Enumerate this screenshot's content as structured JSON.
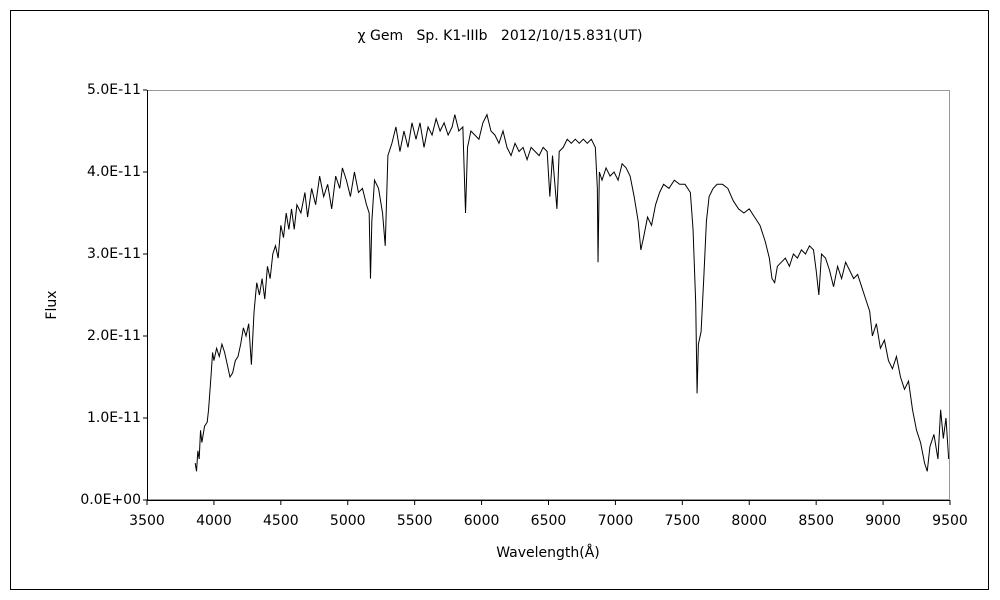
{
  "chart_data": {
    "type": "line",
    "title": "χ Gem   Sp. K1-IIIb   2012/10/15.831(UT)",
    "x_label": "Wavelength(Å)",
    "y_label": "Flux",
    "color": "#000000",
    "xlim": [
      3500,
      9500
    ],
    "xticks": [
      3500,
      4000,
      4500,
      5000,
      5500,
      6000,
      6500,
      7000,
      7500,
      8000,
      8500,
      9000,
      9500
    ],
    "ylim": [
      0,
      5e-11
    ],
    "yticks": [
      {
        "value": 0,
        "label": "0.0E+00"
      },
      {
        "value": 1e-11,
        "label": "1.0E-11"
      },
      {
        "value": 2e-11,
        "label": "2.0E-11"
      },
      {
        "value": 3e-11,
        "label": "3.0E-11"
      },
      {
        "value": 4e-11,
        "label": "4.0E-11"
      },
      {
        "value": 5e-11,
        "label": "5.0E-11"
      }
    ],
    "x": [
      3860,
      3870,
      3880,
      3890,
      3900,
      3910,
      3930,
      3950,
      3960,
      3980,
      3990,
      4000,
      4020,
      4040,
      4060,
      4080,
      4100,
      4120,
      4140,
      4160,
      4180,
      4200,
      4220,
      4240,
      4260,
      4280,
      4300,
      4320,
      4340,
      4360,
      4380,
      4400,
      4420,
      4440,
      4460,
      4480,
      4500,
      4520,
      4540,
      4560,
      4580,
      4600,
      4620,
      4650,
      4680,
      4700,
      4730,
      4760,
      4790,
      4820,
      4850,
      4880,
      4910,
      4940,
      4960,
      4990,
      5020,
      5050,
      5080,
      5110,
      5140,
      5160,
      5170,
      5180,
      5200,
      5230,
      5260,
      5280,
      5300,
      5330,
      5360,
      5390,
      5420,
      5450,
      5480,
      5510,
      5540,
      5570,
      5600,
      5630,
      5660,
      5690,
      5720,
      5750,
      5780,
      5800,
      5830,
      5860,
      5880,
      5895,
      5920,
      5950,
      5980,
      6010,
      6040,
      6070,
      6100,
      6130,
      6160,
      6190,
      6220,
      6250,
      6280,
      6310,
      6340,
      6370,
      6400,
      6430,
      6460,
      6490,
      6510,
      6530,
      6563,
      6580,
      6610,
      6640,
      6670,
      6700,
      6730,
      6760,
      6790,
      6820,
      6850,
      6865,
      6870,
      6880,
      6900,
      6930,
      6960,
      6990,
      7020,
      7050,
      7080,
      7110,
      7140,
      7170,
      7190,
      7210,
      7240,
      7270,
      7300,
      7330,
      7360,
      7400,
      7440,
      7480,
      7520,
      7560,
      7580,
      7600,
      7610,
      7620,
      7640,
      7660,
      7680,
      7700,
      7730,
      7760,
      7800,
      7840,
      7880,
      7920,
      7960,
      8000,
      8040,
      8080,
      8120,
      8150,
      8170,
      8190,
      8210,
      8240,
      8270,
      8300,
      8330,
      8360,
      8390,
      8420,
      8450,
      8480,
      8500,
      8520,
      8540,
      8570,
      8600,
      8630,
      8660,
      8690,
      8720,
      8750,
      8780,
      8810,
      8840,
      8870,
      8900,
      8920,
      8950,
      8980,
      9010,
      9040,
      9070,
      9100,
      9130,
      9160,
      9190,
      9220,
      9250,
      9280,
      9310,
      9330,
      9350,
      9380,
      9410,
      9430,
      9450,
      9470,
      9490
    ],
    "values": [
      4.5e-12,
      3.5e-12,
      6e-12,
      5e-12,
      8.5e-12,
      7e-12,
      9e-12,
      9.5e-12,
      1.1e-11,
      1.55e-11,
      1.8e-11,
      1.7e-11,
      1.85e-11,
      1.75e-11,
      1.9e-11,
      1.8e-11,
      1.65e-11,
      1.5e-11,
      1.55e-11,
      1.7e-11,
      1.75e-11,
      1.9e-11,
      2.1e-11,
      2e-11,
      2.15e-11,
      1.65e-11,
      2.3e-11,
      2.65e-11,
      2.5e-11,
      2.7e-11,
      2.45e-11,
      2.85e-11,
      2.7e-11,
      3e-11,
      3.1e-11,
      2.95e-11,
      3.35e-11,
      3.2e-11,
      3.5e-11,
      3.3e-11,
      3.55e-11,
      3.3e-11,
      3.6e-11,
      3.5e-11,
      3.75e-11,
      3.45e-11,
      3.8e-11,
      3.6e-11,
      3.95e-11,
      3.7e-11,
      3.85e-11,
      3.55e-11,
      3.95e-11,
      3.8e-11,
      4.05e-11,
      3.9e-11,
      3.7e-11,
      4e-11,
      3.75e-11,
      3.8e-11,
      3.6e-11,
      3.5e-11,
      2.7e-11,
      3.4e-11,
      3.9e-11,
      3.8e-11,
      3.5e-11,
      3.1e-11,
      4.2e-11,
      4.35e-11,
      4.55e-11,
      4.25e-11,
      4.5e-11,
      4.3e-11,
      4.6e-11,
      4.4e-11,
      4.6e-11,
      4.3e-11,
      4.55e-11,
      4.45e-11,
      4.65e-11,
      4.5e-11,
      4.6e-11,
      4.45e-11,
      4.55e-11,
      4.7e-11,
      4.5e-11,
      4.55e-11,
      3.5e-11,
      4.3e-11,
      4.5e-11,
      4.45e-11,
      4.4e-11,
      4.6e-11,
      4.7e-11,
      4.5e-11,
      4.45e-11,
      4.35e-11,
      4.5e-11,
      4.3e-11,
      4.2e-11,
      4.35e-11,
      4.25e-11,
      4.3e-11,
      4.15e-11,
      4.3e-11,
      4.25e-11,
      4.2e-11,
      4.3e-11,
      4.25e-11,
      3.7e-11,
      4.2e-11,
      3.55e-11,
      4.25e-11,
      4.3e-11,
      4.4e-11,
      4.35e-11,
      4.4e-11,
      4.35e-11,
      4.4e-11,
      4.35e-11,
      4.4e-11,
      4.3e-11,
      3.8e-11,
      2.9e-11,
      4e-11,
      3.9e-11,
      4.05e-11,
      3.95e-11,
      4e-11,
      3.9e-11,
      4.1e-11,
      4.05e-11,
      3.95e-11,
      3.7e-11,
      3.4e-11,
      3.05e-11,
      3.2e-11,
      3.45e-11,
      3.35e-11,
      3.6e-11,
      3.75e-11,
      3.85e-11,
      3.8e-11,
      3.9e-11,
      3.85e-11,
      3.85e-11,
      3.75e-11,
      3.3e-11,
      2.4e-11,
      1.3e-11,
      1.9e-11,
      2.05e-11,
      2.7e-11,
      3.4e-11,
      3.7e-11,
      3.8e-11,
      3.85e-11,
      3.85e-11,
      3.8e-11,
      3.65e-11,
      3.55e-11,
      3.5e-11,
      3.55e-11,
      3.45e-11,
      3.35e-11,
      3.15e-11,
      2.95e-11,
      2.7e-11,
      2.65e-11,
      2.85e-11,
      2.9e-11,
      2.95e-11,
      2.85e-11,
      3e-11,
      2.95e-11,
      3.05e-11,
      3e-11,
      3.1e-11,
      3.05e-11,
      2.8e-11,
      2.5e-11,
      3e-11,
      2.95e-11,
      2.8e-11,
      2.6e-11,
      2.85e-11,
      2.7e-11,
      2.9e-11,
      2.8e-11,
      2.7e-11,
      2.75e-11,
      2.6e-11,
      2.45e-11,
      2.3e-11,
      2e-11,
      2.15e-11,
      1.85e-11,
      1.95e-11,
      1.7e-11,
      1.6e-11,
      1.75e-11,
      1.5e-11,
      1.35e-11,
      1.45e-11,
      1.1e-11,
      8.5e-12,
      7e-12,
      4.5e-12,
      3.5e-12,
      6.5e-12,
      8e-12,
      5e-12,
      1.1e-11,
      7.5e-12,
      1e-11,
      5e-12
    ]
  }
}
